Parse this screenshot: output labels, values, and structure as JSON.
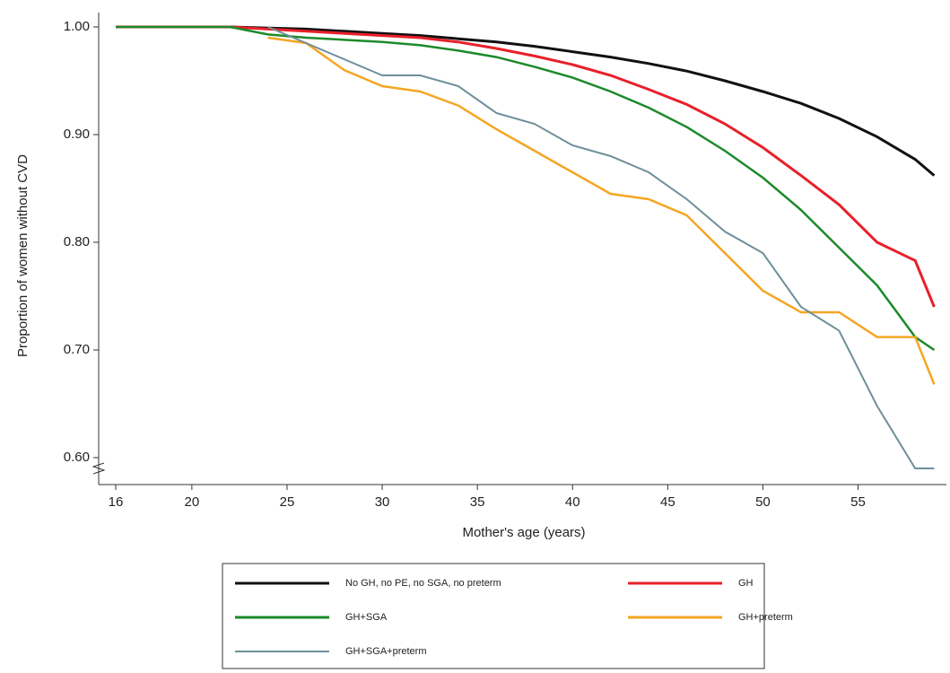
{
  "chart_data": {
    "type": "line",
    "x_label": "Mother's age (years)",
    "y_label": "Proportion of women without CVD",
    "x": [
      16,
      18,
      20,
      22,
      24,
      26,
      28,
      30,
      32,
      34,
      36,
      38,
      40,
      42,
      44,
      46,
      48,
      50,
      52,
      54,
      56,
      58,
      59
    ],
    "xlim": [
      16,
      59.5
    ],
    "xticks": [
      16,
      20,
      25,
      30,
      35,
      40,
      45,
      50,
      55
    ],
    "ylim": [
      0.575,
      1.005
    ],
    "yticks": [
      {
        "value": 0.6,
        "label": "0.60"
      },
      {
        "value": 0.7,
        "label": "0.70"
      },
      {
        "value": 0.8,
        "label": "0.80"
      },
      {
        "value": 0.9,
        "label": "0.90"
      },
      {
        "value": 1.0,
        "label": "1.00"
      }
    ],
    "series": [
      {
        "name": "No GH, no PE, no SGA, no preterm",
        "color": "#111111",
        "values": [
          1,
          1,
          1,
          1,
          0.999,
          0.998,
          0.996,
          0.994,
          0.992,
          0.989,
          0.986,
          0.982,
          0.977,
          0.972,
          0.966,
          0.959,
          0.95,
          0.94,
          0.929,
          0.915,
          0.898,
          0.877,
          0.862
        ]
      },
      {
        "name": "GH",
        "color": "#e8202a",
        "values": [
          1,
          1,
          1,
          1,
          0.998,
          0.996,
          0.994,
          0.992,
          0.99,
          0.986,
          0.98,
          0.973,
          0.965,
          0.955,
          0.942,
          0.928,
          0.91,
          0.888,
          0.862,
          0.835,
          0.8,
          0.783,
          0.74
        ]
      },
      {
        "name": "GH+SGA",
        "color": "#1c8a2a",
        "values": [
          1,
          1,
          1,
          1,
          0.993,
          0.99,
          0.988,
          0.986,
          0.983,
          0.978,
          0.972,
          0.963,
          0.953,
          0.94,
          0.925,
          0.907,
          0.885,
          0.86,
          0.83,
          0.795,
          0.76,
          0.712,
          0.7
        ]
      },
      {
        "name": "GH+preterm",
        "color": "#f5a623",
        "values": [
          null,
          null,
          null,
          null,
          0.99,
          0.985,
          0.96,
          0.945,
          0.94,
          0.927,
          0.905,
          0.885,
          0.865,
          0.845,
          0.84,
          0.825,
          0.79,
          0.755,
          0.735,
          0.735,
          0.712,
          0.712,
          0.668
        ]
      },
      {
        "name": "GH+SGA+preterm",
        "color": "#6e8f9a",
        "values": [
          null,
          null,
          null,
          null,
          1.0,
          0.985,
          0.97,
          0.955,
          0.955,
          0.945,
          0.92,
          0.91,
          0.89,
          0.88,
          0.865,
          0.84,
          0.81,
          0.79,
          0.74,
          0.718,
          0.648,
          0.59,
          0.59
        ]
      }
    ]
  }
}
